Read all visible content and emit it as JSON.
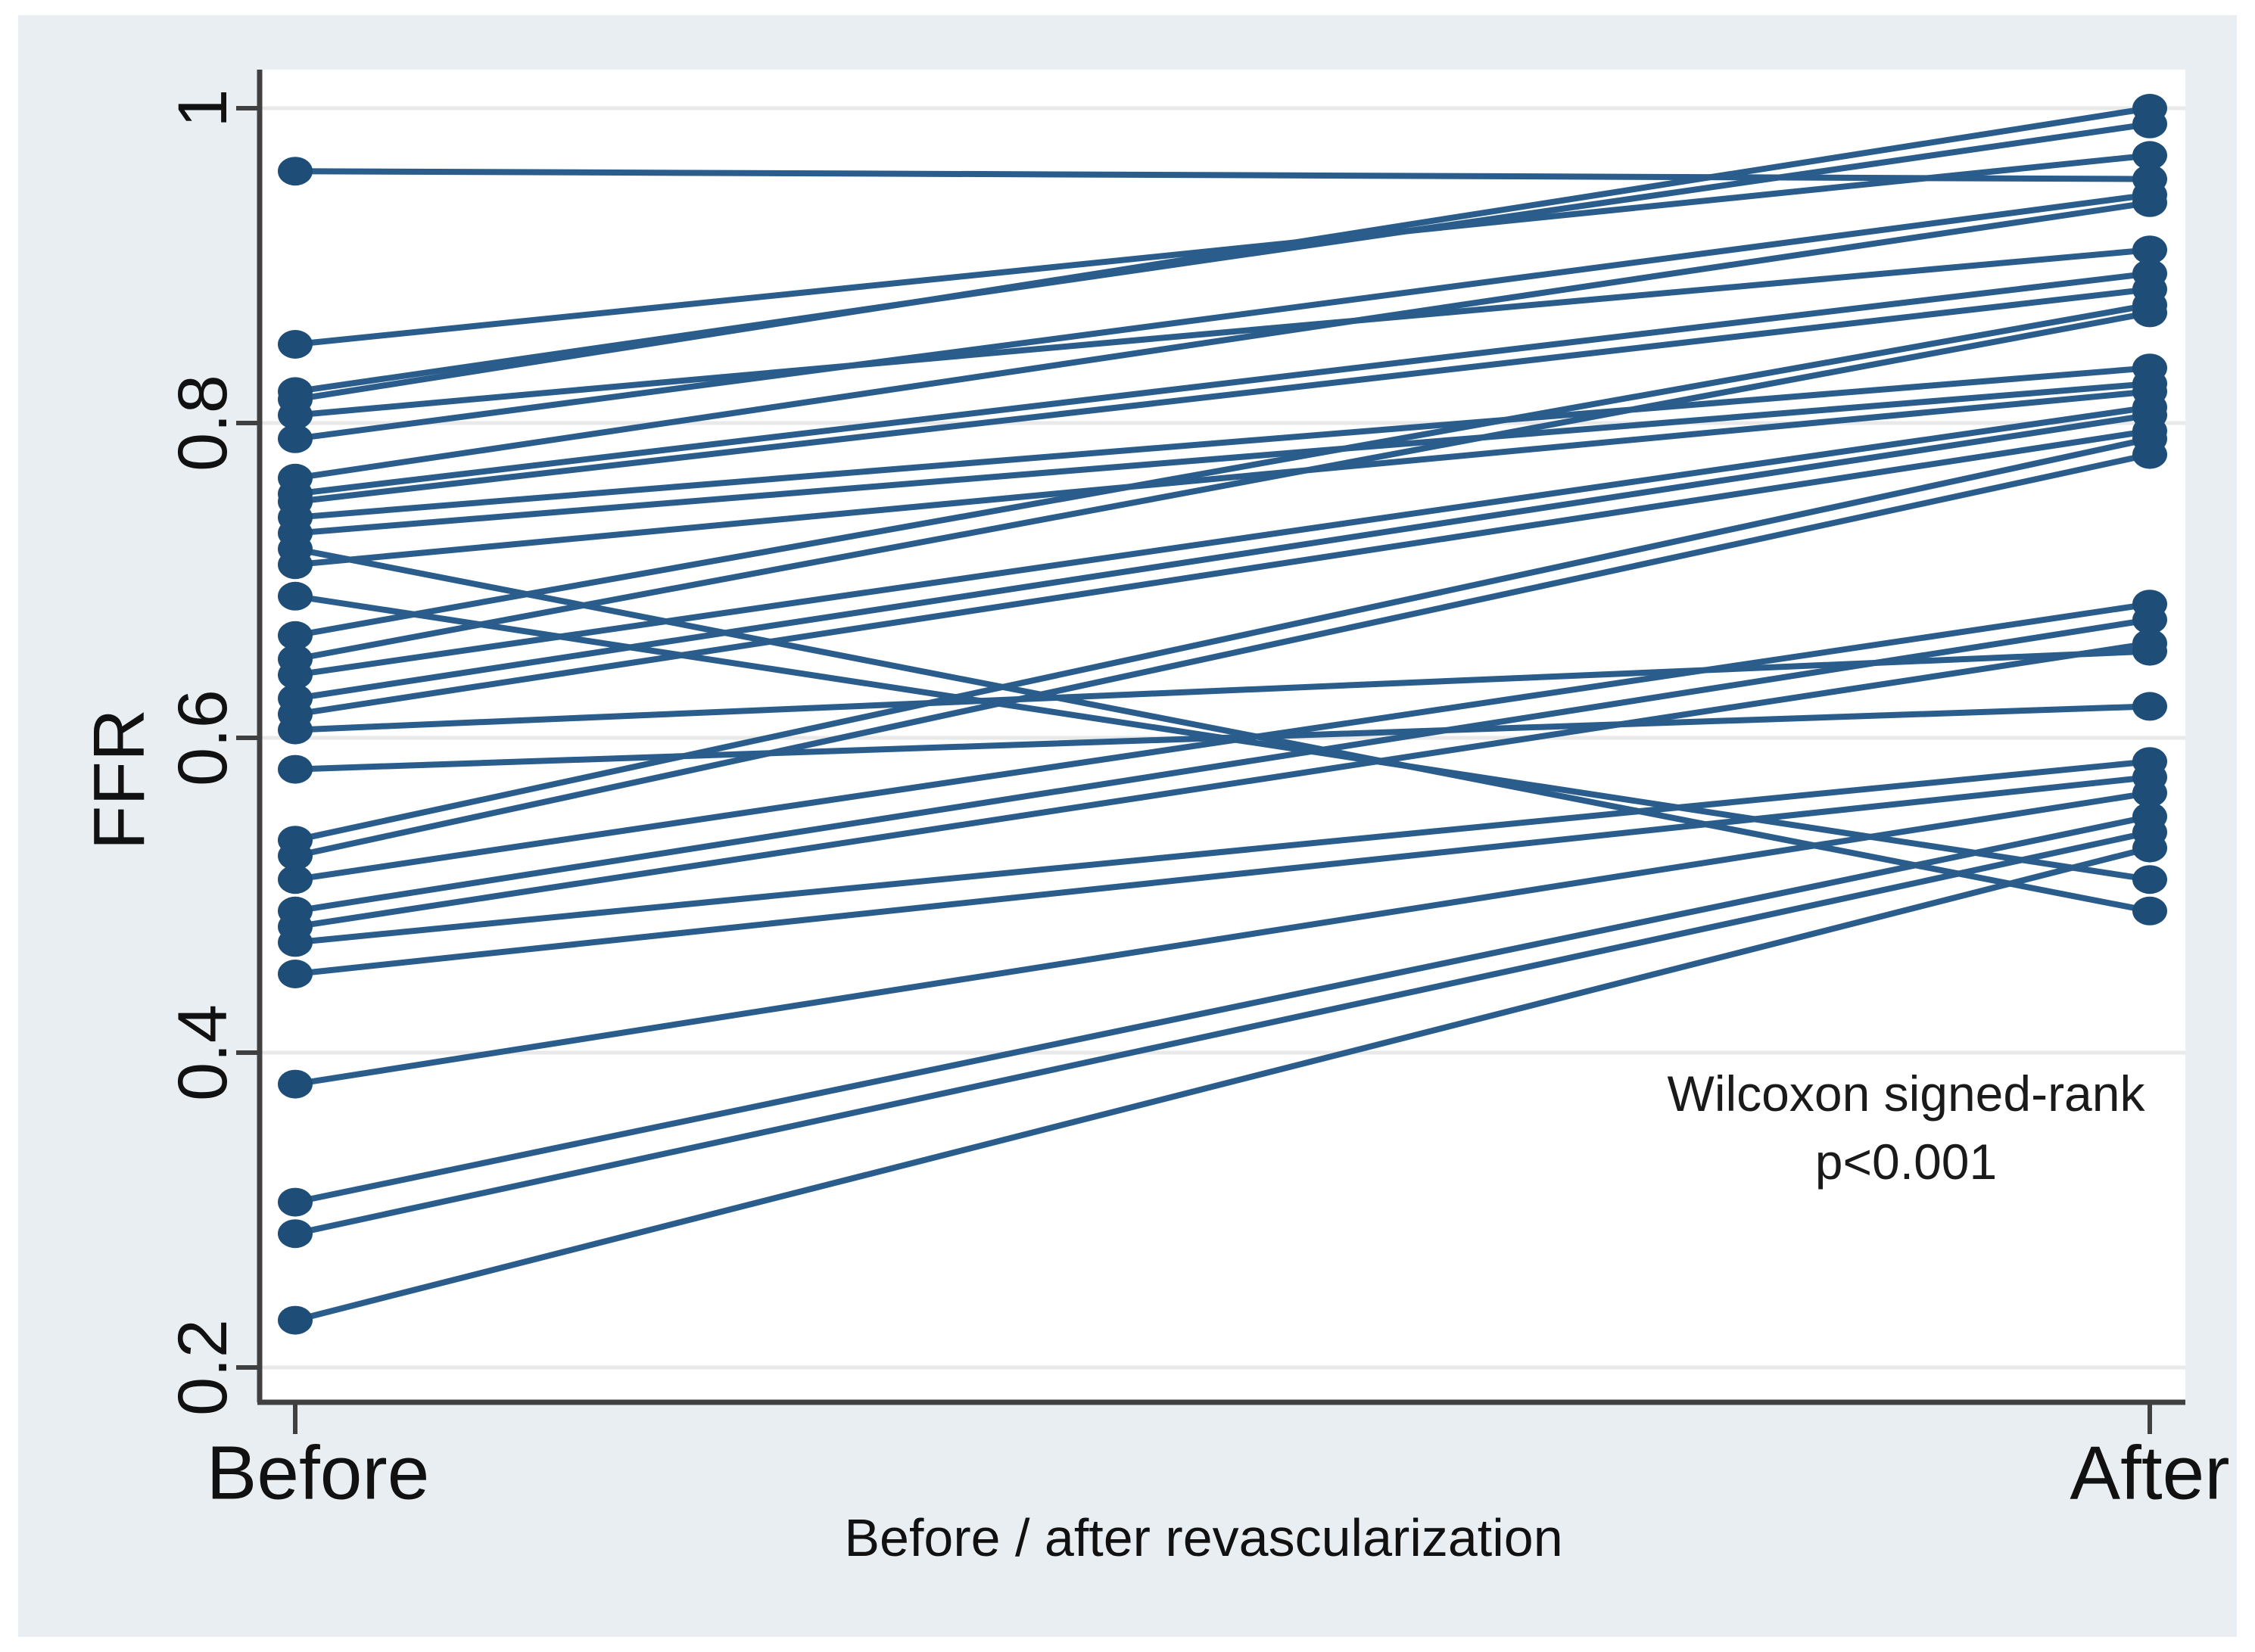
{
  "chart_data": {
    "type": "line",
    "subtype": "paired-slope-chart",
    "title": "",
    "xlabel": "Before / after revascularization",
    "ylabel": "FFR",
    "x_categories": [
      "Before",
      "After"
    ],
    "y_tick_labels": [
      "1",
      "0.8",
      "0.6",
      "0.4",
      "0.2"
    ],
    "y_tick_values": [
      1,
      0.8,
      0.6,
      0.4,
      0.2
    ],
    "ylim": [
      0.18,
      1.02
    ],
    "grid": "horizontal",
    "legend": "none",
    "annotation": {
      "line1": "Wilcoxon signed-rank",
      "line2": "p<0.001"
    },
    "pairs": [
      {
        "before": 0.96,
        "after": 0.955
      },
      {
        "before": 0.85,
        "after": 0.97
      },
      {
        "before": 0.82,
        "after": 0.99
      },
      {
        "before": 0.815,
        "after": 1.0
      },
      {
        "before": 0.805,
        "after": 0.91
      },
      {
        "before": 0.79,
        "after": 0.945
      },
      {
        "before": 0.765,
        "after": 0.94
      },
      {
        "before": 0.755,
        "after": 0.895
      },
      {
        "before": 0.75,
        "after": 0.885
      },
      {
        "before": 0.74,
        "after": 0.835
      },
      {
        "before": 0.73,
        "after": 0.825
      },
      {
        "before": 0.72,
        "after": 0.49
      },
      {
        "before": 0.71,
        "after": 0.82
      },
      {
        "before": 0.69,
        "after": 0.51
      },
      {
        "before": 0.665,
        "after": 0.875
      },
      {
        "before": 0.65,
        "after": 0.87
      },
      {
        "before": 0.64,
        "after": 0.81
      },
      {
        "before": 0.625,
        "after": 0.805
      },
      {
        "before": 0.615,
        "after": 0.795
      },
      {
        "before": 0.605,
        "after": 0.655
      },
      {
        "before": 0.58,
        "after": 0.62
      },
      {
        "before": 0.535,
        "after": 0.79
      },
      {
        "before": 0.525,
        "after": 0.78
      },
      {
        "before": 0.51,
        "after": 0.685
      },
      {
        "before": 0.49,
        "after": 0.675
      },
      {
        "before": 0.48,
        "after": 0.66
      },
      {
        "before": 0.47,
        "after": 0.585
      },
      {
        "before": 0.45,
        "after": 0.575
      },
      {
        "before": 0.38,
        "after": 0.565
      },
      {
        "before": 0.305,
        "after": 0.55
      },
      {
        "before": 0.285,
        "after": 0.54
      },
      {
        "before": 0.23,
        "after": 0.53
      }
    ],
    "colors": {
      "line": "#2a5d8c",
      "marker": "#1e4e78",
      "axis": "#404040",
      "gridline": "#e9e9e9",
      "plot_background": "#ffffff",
      "canvas_background": "#e8eef2",
      "text": "#111111"
    }
  }
}
